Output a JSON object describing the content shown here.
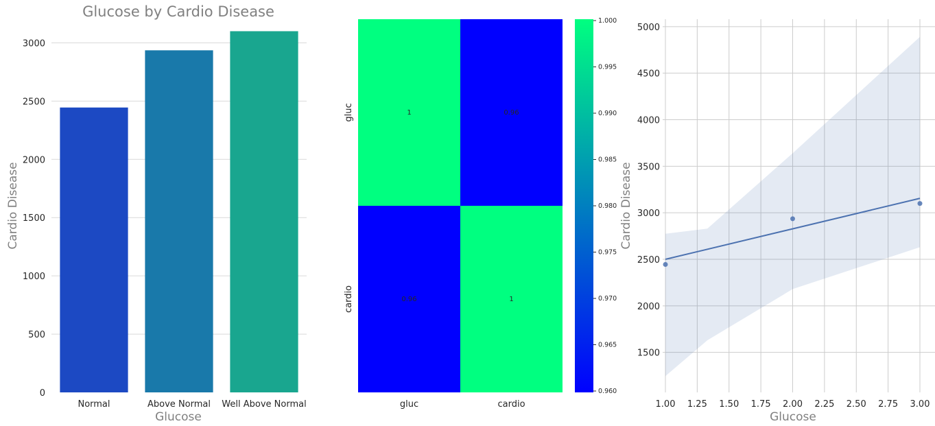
{
  "chart_data": [
    {
      "type": "bar",
      "title": "Glucose by Cardio Disease",
      "xlabel": "Glucose",
      "ylabel": "Cardio Disease",
      "categories": [
        "Normal",
        "Above Normal",
        "Well Above Normal"
      ],
      "values": [
        2445,
        2936,
        3100
      ],
      "colors": [
        "#1c49c3",
        "#1979aa",
        "#19a68f"
      ],
      "yticks": [
        0,
        500,
        1000,
        1500,
        2000,
        2500,
        3000
      ],
      "ylim": [
        0,
        3250
      ],
      "grid": "horizontal"
    },
    {
      "type": "heatmap",
      "rows": [
        "gluc",
        "cardio"
      ],
      "columns": [
        "gluc",
        "cardio"
      ],
      "values": [
        [
          1,
          0.96
        ],
        [
          0.96,
          1
        ]
      ],
      "annotations": [
        [
          "1",
          "0.96"
        ],
        [
          "0.96",
          "1"
        ]
      ],
      "colormap": "winter",
      "colorbar_ticks": [
        "1.000",
        "0.995",
        "0.990",
        "0.985",
        "0.980",
        "0.975",
        "0.970",
        "0.965",
        "0.960"
      ],
      "vmin": 0.96,
      "vmax": 1.0
    },
    {
      "type": "scatter",
      "xlabel": "Glucose",
      "ylabel": "Cardio Disease",
      "x": [
        1,
        2,
        3
      ],
      "y": [
        2445,
        2936,
        3100
      ],
      "regression_line": {
        "x": [
          1,
          3
        ],
        "y": [
          2500,
          3155
        ]
      },
      "confidence_band": {
        "x": [
          1,
          1.33,
          2,
          3
        ],
        "upper": [
          2775,
          2830,
          3640,
          4890
        ],
        "lower": [
          1245,
          1630,
          2180,
          2630
        ]
      },
      "xticks": [
        "1.00",
        "1.25",
        "1.50",
        "1.75",
        "2.00",
        "2.25",
        "2.50",
        "2.75",
        "3.00"
      ],
      "yticks": [
        "1500",
        "2000",
        "2500",
        "3000",
        "3500",
        "4000",
        "4500",
        "5000"
      ],
      "xlim": [
        1,
        3
      ],
      "ylim": [
        1070,
        5080
      ],
      "grid": "on",
      "color": "#4c72b0"
    }
  ]
}
